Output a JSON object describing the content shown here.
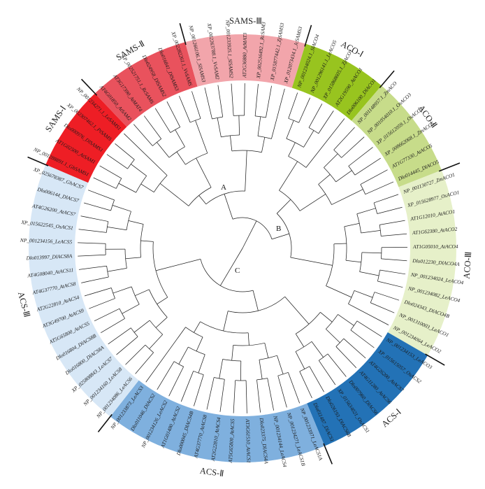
{
  "clades": [
    {
      "name": "SAMS-Ⅰ",
      "color": "#ee1e25",
      "leaves": [
        "NP_001288891.1_GhSAMS1",
        "AT1G02500_AtSAM1",
        "Dlo000976_DlSAMS1",
        "XP_002307462.1_PtSAMS",
        "NP_001234271.1_LeSAMS1"
      ]
    },
    {
      "name": "SAMS-Ⅱ",
      "color": "#e9525d",
      "leaves": [
        "AT4G01850_AtSAM2",
        "AT3G17390_AtMAT4",
        "XP_002521751.1_RcSAMS",
        "Dlo024958_DlSAMS2",
        "Dlo016841_DlSAMS3",
        "XP_002282261.1_VvSAMS"
      ]
    },
    {
      "name": "SAMS-Ⅲ",
      "color": "#f2a5ab",
      "leaves": [
        "NP_001266106.1_SlSAMS3",
        "XP_002263788.1_VvSAM2",
        "NP_001233925.1_SlSAMS2",
        "AT2G36880_AtMAT3",
        "XP_002516492.1_RcSAM3",
        "XP_015877442.1_ZjSAMS3",
        "XP_012073434.1_JcSAMS3"
      ]
    },
    {
      "name": "ACO-Ⅰ",
      "color": "#98c41f",
      "leaves": [
        "NP_001234024.1_SlACO4",
        "NP_001296141.1_LeACO5",
        "XP_015868605.1_ZjACO1",
        "AT2G19590_AtACO1",
        "Dlo006100_DlACO1"
      ]
    },
    {
      "name": "ACO-Ⅱ",
      "color": "#c7dc8a",
      "leaves": [
        "NP_001148957.1_ZmACO",
        "NP_001054010.1_OsACO3",
        "XP_015612059.1_OsACO5",
        "XP_008662068.1_ZmACO5",
        "AT1G77330_AtACO5",
        "Dlo014445_DlACO5"
      ]
    },
    {
      "name": "ACO-Ⅲ",
      "color": "#e6f0c9",
      "leaves": [
        "NP_001130727_ZmACO1",
        "XP_015628977_OsACO1",
        "AT1G12010_AtACO1",
        "AT1G62380_AtACO2",
        "AT1G05010_AtACO4",
        "Dlo012230_DlACO4A",
        "NP_001234024_LeACO4",
        "NP_001234082_LeACO4",
        "Dlo024343_DlACO4B",
        "NP_001310003_LeACO1",
        "NP_001234064_LeACO2"
      ]
    },
    {
      "name": "ACS-Ⅰ",
      "color": "#2372b6",
      "leaves": [
        "NP_001234153_LeACO3",
        "XP_015615057_OsACS2",
        "AT4G26200_AtACS7",
        "AT4G11280_AtACS6",
        "Dlo007960_DlACS6",
        "XP_015634021_OsACS1",
        "Dlo026193_DlACS6B",
        "Dlo011487_DlACS1"
      ]
    },
    {
      "name": "ACS-Ⅱ",
      "color": "#7fb0de",
      "leaves": [
        "NP_001233971_LeACS1A",
        "NP_001234271_LeACS1B",
        "NP_001234144_LeACS4",
        "Dlo023375_DlACS4A",
        "AT3G61510_AtACS1",
        "AT5G65800_AtACS5",
        "AT2G22810_AtACS4",
        "AT4G37770_AtACS8",
        "Dlo000045_DlACS4B",
        "AT1G01480_AtACS2",
        "NP_001234126_LeACS2",
        "Dlo011046_DlACS2",
        "NP_001233873_LeACS3"
      ]
    },
    {
      "name": "ACS-Ⅲ",
      "color": "#d7e7f6",
      "leaves": [
        "NP_001234086_LeACS6",
        "NP_001234160_LeACS8",
        "XP_025808843_LeACS7",
        "Dlo016800_DlACS8A",
        "Dlo016804_DlACS8B",
        "AT5G65800_AtACS5",
        "AT3G49700_AtACS9",
        "AT2G22810_AtACS4",
        "AT4G37770_AtACS8",
        "AT4G08040_AtACS11",
        "Dlo013997_DlACS8A",
        "NP_001234156_LeACS5",
        "XP_015622545_OsACS1",
        "AT4G26200_AtACS7",
        "Dlo006144_DlACS7",
        "XP_025678387_GhACS7"
      ]
    }
  ],
  "node_labels": {
    "a": "A",
    "b": "B",
    "c": "C"
  }
}
